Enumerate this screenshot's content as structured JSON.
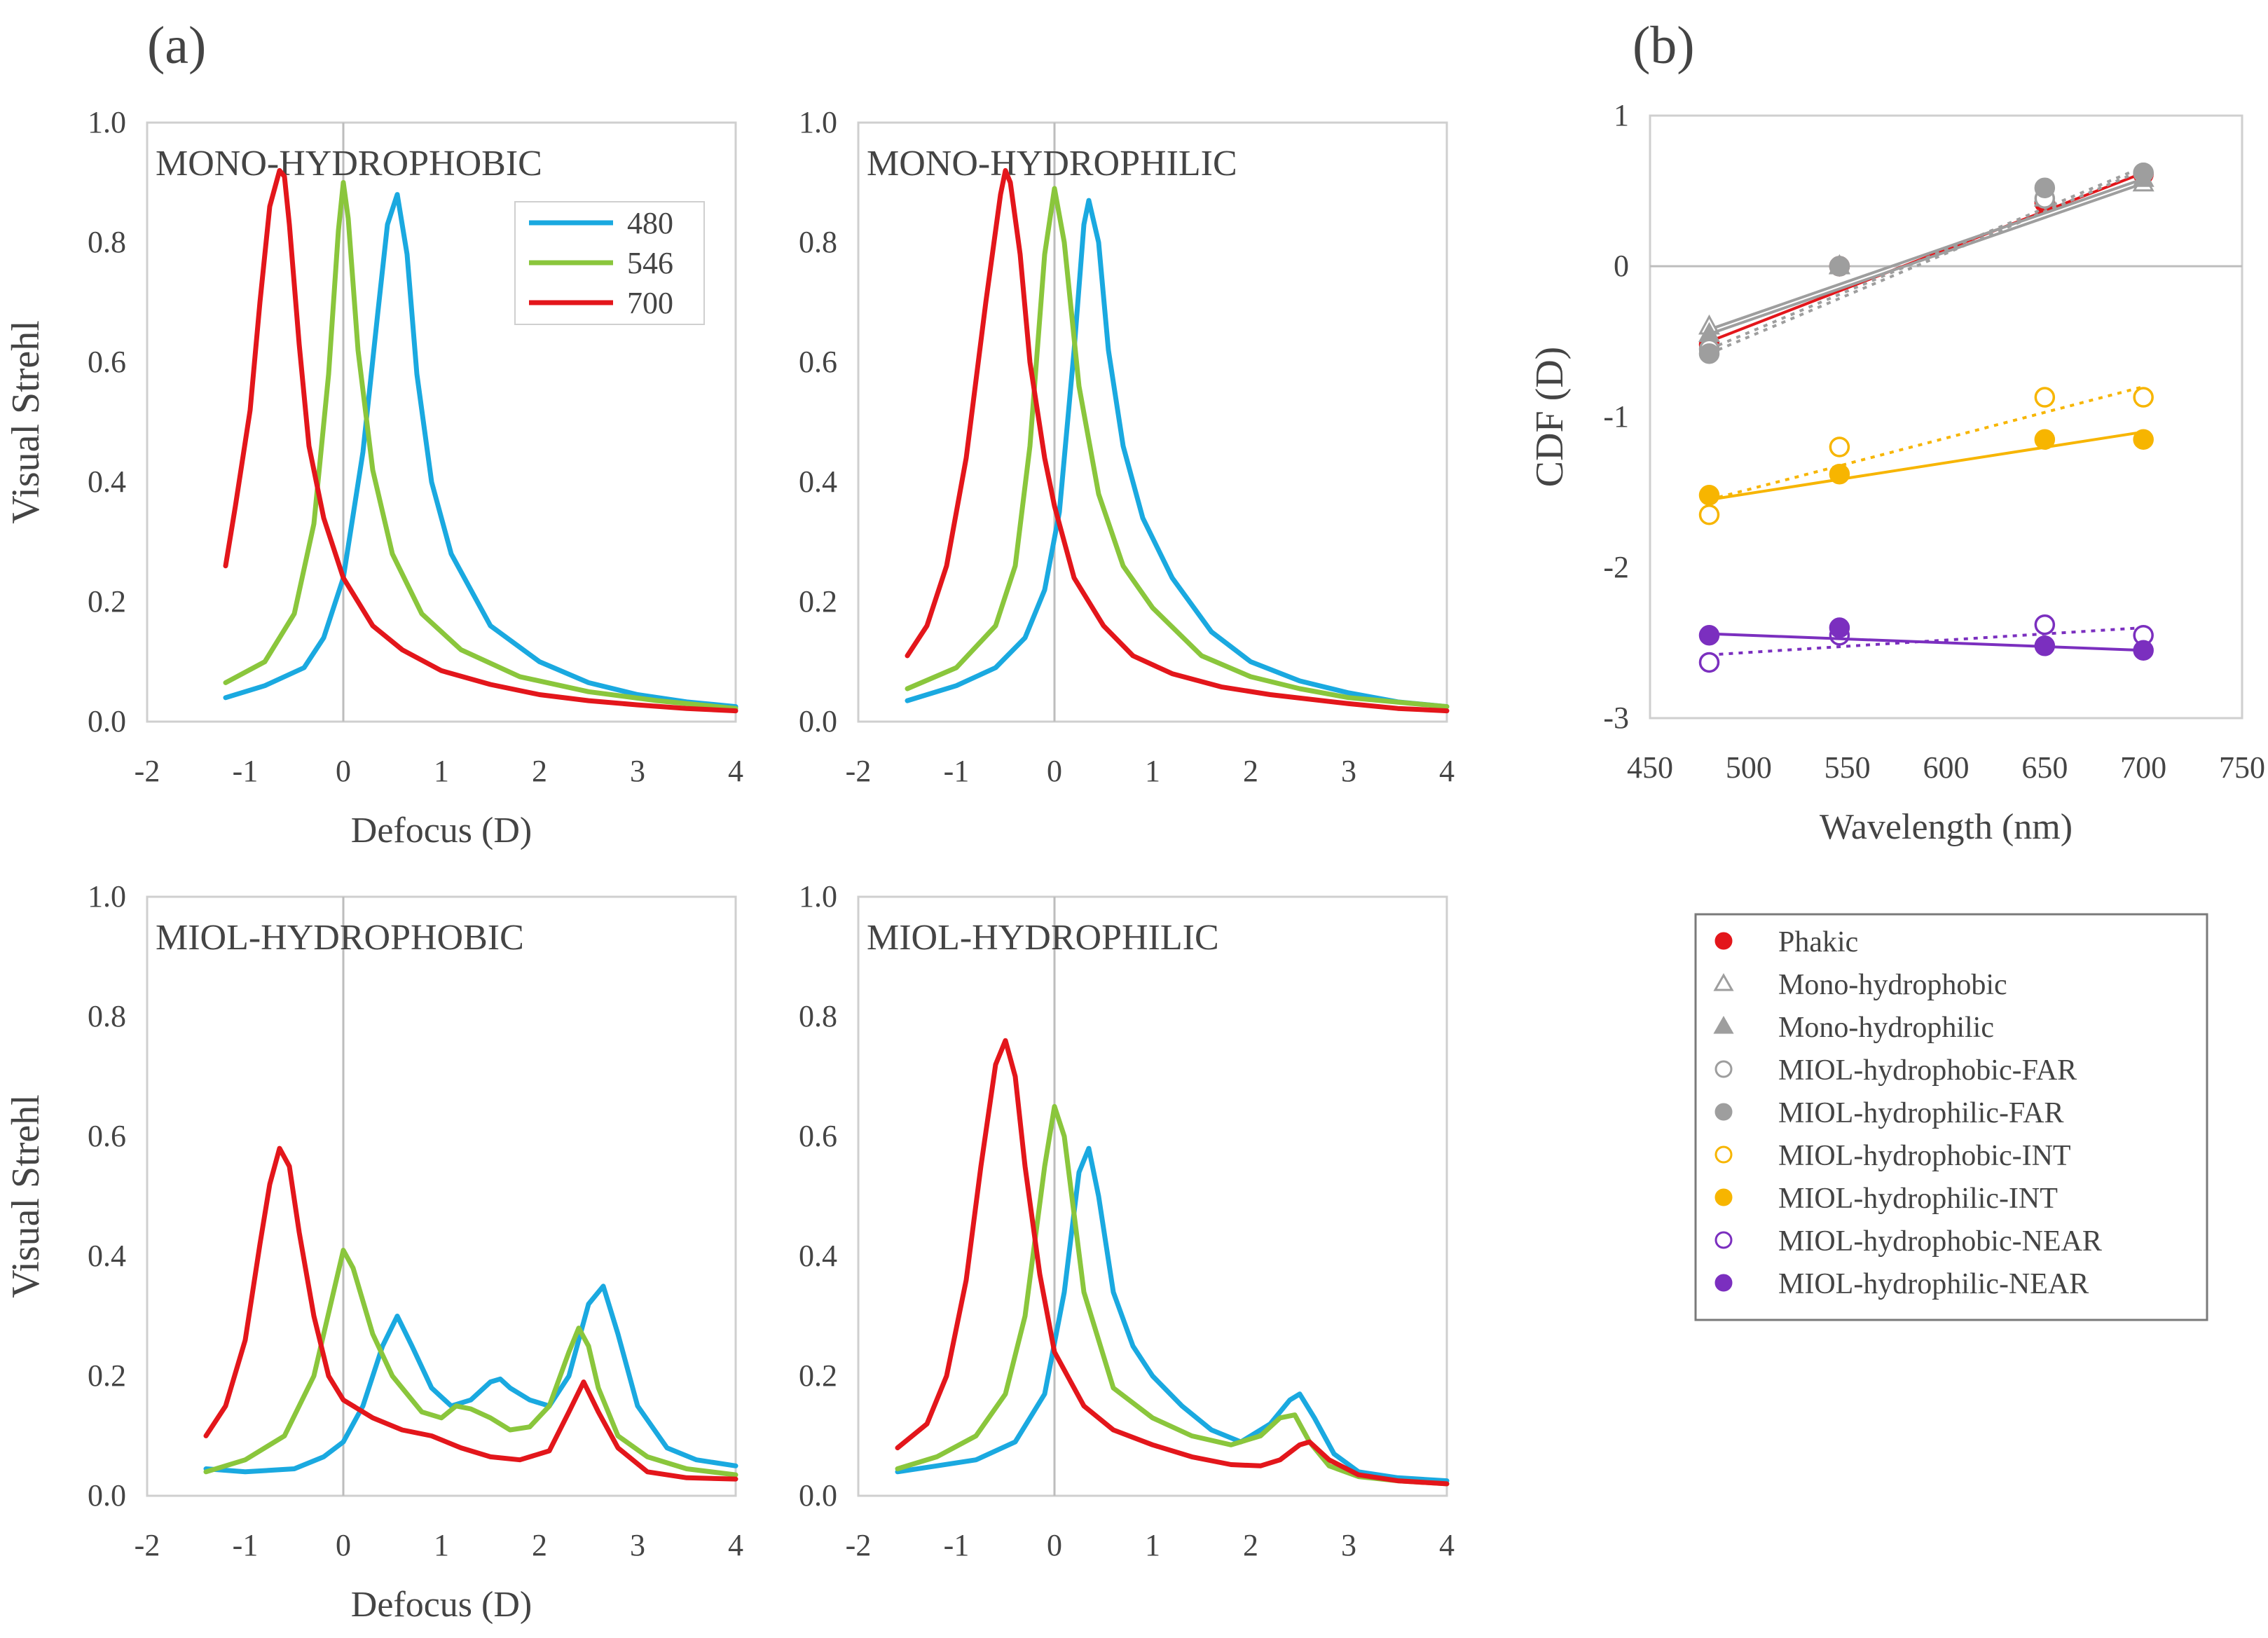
{
  "panel_labels": {
    "a": "(a)",
    "b": "(b)"
  },
  "colors": {
    "480": "#1aa9e0",
    "546": "#8ac63c",
    "700": "#e3161b",
    "gray": "#9e9e9e",
    "phakic": "#e3161b",
    "int": "#f7b500",
    "near": "#7b2fbf"
  },
  "chart_data": [
    {
      "id": "mono-hydrophobic",
      "type": "line",
      "title": "MONO-HYDROPHOBIC",
      "xlabel": "Defocus (D)",
      "ylabel": "Visual Strehl",
      "xlim": [
        -2,
        4
      ],
      "ylim": [
        0,
        1
      ],
      "xticks": [
        "-2",
        "-1",
        "0",
        "1",
        "2",
        "3",
        "4"
      ],
      "yticks": [
        "0.0",
        "0.2",
        "0.4",
        "0.6",
        "0.8",
        "1.0"
      ],
      "legend": [
        "480",
        "546",
        "700"
      ],
      "series": [
        {
          "name": "480",
          "x": [
            -1.2,
            -0.8,
            -0.4,
            -0.2,
            0.0,
            0.2,
            0.35,
            0.45,
            0.55,
            0.65,
            0.75,
            0.9,
            1.1,
            1.5,
            2.0,
            2.5,
            3.0,
            3.5,
            4.0
          ],
          "y": [
            0.04,
            0.06,
            0.09,
            0.14,
            0.24,
            0.45,
            0.68,
            0.83,
            0.88,
            0.78,
            0.58,
            0.4,
            0.28,
            0.16,
            0.1,
            0.065,
            0.045,
            0.033,
            0.025
          ]
        },
        {
          "name": "546",
          "x": [
            -1.2,
            -0.8,
            -0.5,
            -0.3,
            -0.15,
            -0.05,
            0.0,
            0.05,
            0.15,
            0.3,
            0.5,
            0.8,
            1.2,
            1.8,
            2.5,
            3.2,
            4.0
          ],
          "y": [
            0.065,
            0.1,
            0.18,
            0.33,
            0.58,
            0.82,
            0.9,
            0.84,
            0.62,
            0.42,
            0.28,
            0.18,
            0.12,
            0.075,
            0.05,
            0.035,
            0.022
          ]
        },
        {
          "name": "700",
          "x": [
            -1.2,
            -1.1,
            -0.95,
            -0.85,
            -0.75,
            -0.65,
            -0.6,
            -0.55,
            -0.45,
            -0.35,
            -0.2,
            0.0,
            0.3,
            0.6,
            1.0,
            1.5,
            2.0,
            2.5,
            3.0,
            3.5,
            4.0
          ],
          "y": [
            0.26,
            0.36,
            0.52,
            0.7,
            0.86,
            0.92,
            0.91,
            0.83,
            0.63,
            0.46,
            0.34,
            0.24,
            0.16,
            0.12,
            0.085,
            0.062,
            0.045,
            0.035,
            0.028,
            0.022,
            0.018
          ]
        }
      ]
    },
    {
      "id": "mono-hydrophilic",
      "type": "line",
      "title": "MONO-HYDROPHILIC",
      "xlabel": "",
      "ylabel": "",
      "xlim": [
        -2,
        4
      ],
      "ylim": [
        0,
        1
      ],
      "xticks": [
        "-2",
        "-1",
        "0",
        "1",
        "2",
        "3",
        "4"
      ],
      "yticks": [
        "0.0",
        "0.2",
        "0.4",
        "0.6",
        "0.8",
        "1.0"
      ],
      "legend": [],
      "series": [
        {
          "name": "480",
          "x": [
            -1.5,
            -1.0,
            -0.6,
            -0.3,
            -0.1,
            0.05,
            0.2,
            0.3,
            0.35,
            0.45,
            0.55,
            0.7,
            0.9,
            1.2,
            1.6,
            2.0,
            2.5,
            3.0,
            3.5,
            4.0
          ],
          "y": [
            0.035,
            0.06,
            0.09,
            0.14,
            0.22,
            0.35,
            0.62,
            0.83,
            0.87,
            0.8,
            0.62,
            0.46,
            0.34,
            0.24,
            0.15,
            0.1,
            0.068,
            0.048,
            0.033,
            0.025
          ]
        },
        {
          "name": "546",
          "x": [
            -1.5,
            -1.0,
            -0.6,
            -0.4,
            -0.25,
            -0.1,
            0.0,
            0.1,
            0.25,
            0.45,
            0.7,
            1.0,
            1.5,
            2.0,
            2.5,
            3.0,
            4.0
          ],
          "y": [
            0.055,
            0.09,
            0.16,
            0.26,
            0.46,
            0.78,
            0.89,
            0.8,
            0.56,
            0.38,
            0.26,
            0.19,
            0.11,
            0.075,
            0.055,
            0.04,
            0.025
          ]
        },
        {
          "name": "700",
          "x": [
            -1.5,
            -1.3,
            -1.1,
            -0.9,
            -0.7,
            -0.55,
            -0.5,
            -0.45,
            -0.35,
            -0.25,
            -0.1,
            0.0,
            0.2,
            0.5,
            0.8,
            1.2,
            1.7,
            2.2,
            3.0,
            3.5,
            4.0
          ],
          "y": [
            0.11,
            0.16,
            0.26,
            0.44,
            0.7,
            0.88,
            0.92,
            0.9,
            0.78,
            0.6,
            0.44,
            0.36,
            0.24,
            0.16,
            0.11,
            0.08,
            0.058,
            0.045,
            0.03,
            0.022,
            0.018
          ]
        }
      ]
    },
    {
      "id": "miol-hydrophobic",
      "type": "line",
      "title": "MIOL-HYDROPHOBIC",
      "xlabel": "Defocus (D)",
      "ylabel": "Visual Strehl",
      "xlim": [
        -2,
        4
      ],
      "ylim": [
        0,
        1
      ],
      "xticks": [
        "-2",
        "-1",
        "0",
        "1",
        "2",
        "3",
        "4"
      ],
      "yticks": [
        "0.0",
        "0.2",
        "0.4",
        "0.6",
        "0.8",
        "1.0"
      ],
      "legend": [],
      "series": [
        {
          "name": "480",
          "x": [
            -1.4,
            -1.0,
            -0.5,
            -0.2,
            0.0,
            0.2,
            0.4,
            0.55,
            0.7,
            0.9,
            1.1,
            1.3,
            1.5,
            1.6,
            1.7,
            1.9,
            2.1,
            2.3,
            2.5,
            2.65,
            2.8,
            3.0,
            3.3,
            3.6,
            4.0
          ],
          "y": [
            0.045,
            0.04,
            0.045,
            0.065,
            0.09,
            0.15,
            0.25,
            0.3,
            0.25,
            0.18,
            0.15,
            0.16,
            0.19,
            0.195,
            0.18,
            0.16,
            0.15,
            0.2,
            0.32,
            0.35,
            0.27,
            0.15,
            0.08,
            0.06,
            0.05
          ]
        },
        {
          "name": "546",
          "x": [
            -1.4,
            -1.0,
            -0.6,
            -0.3,
            -0.1,
            0.0,
            0.1,
            0.3,
            0.5,
            0.8,
            1.0,
            1.15,
            1.3,
            1.5,
            1.7,
            1.9,
            2.1,
            2.3,
            2.4,
            2.5,
            2.6,
            2.8,
            3.1,
            3.5,
            4.0
          ],
          "y": [
            0.04,
            0.06,
            0.1,
            0.2,
            0.34,
            0.41,
            0.38,
            0.27,
            0.2,
            0.14,
            0.13,
            0.15,
            0.145,
            0.13,
            0.11,
            0.115,
            0.15,
            0.24,
            0.28,
            0.25,
            0.18,
            0.1,
            0.065,
            0.045,
            0.035
          ]
        },
        {
          "name": "700",
          "x": [
            -1.4,
            -1.2,
            -1.0,
            -0.85,
            -0.75,
            -0.65,
            -0.55,
            -0.45,
            -0.3,
            -0.15,
            0.0,
            0.3,
            0.6,
            0.9,
            1.2,
            1.5,
            1.8,
            2.1,
            2.3,
            2.45,
            2.6,
            2.8,
            3.1,
            3.5,
            4.0
          ],
          "y": [
            0.1,
            0.15,
            0.26,
            0.42,
            0.52,
            0.58,
            0.55,
            0.44,
            0.3,
            0.2,
            0.16,
            0.13,
            0.11,
            0.1,
            0.08,
            0.065,
            0.06,
            0.075,
            0.14,
            0.19,
            0.14,
            0.08,
            0.04,
            0.03,
            0.028
          ]
        }
      ]
    },
    {
      "id": "miol-hydrophilic",
      "type": "line",
      "title": "MIOL-HYDROPHILIC",
      "xlabel": "",
      "ylabel": "",
      "xlim": [
        -2,
        4
      ],
      "ylim": [
        0,
        1
      ],
      "xticks": [
        "-2",
        "-1",
        "0",
        "1",
        "2",
        "3",
        "4"
      ],
      "yticks": [
        "0.0",
        "0.2",
        "0.4",
        "0.6",
        "0.8",
        "1.0"
      ],
      "legend": [],
      "series": [
        {
          "name": "480",
          "x": [
            -1.6,
            -1.2,
            -0.8,
            -0.4,
            -0.1,
            0.1,
            0.25,
            0.35,
            0.45,
            0.6,
            0.8,
            1.0,
            1.3,
            1.6,
            1.9,
            2.2,
            2.4,
            2.5,
            2.65,
            2.85,
            3.1,
            3.5,
            4.0
          ],
          "y": [
            0.04,
            0.05,
            0.06,
            0.09,
            0.17,
            0.34,
            0.54,
            0.58,
            0.5,
            0.34,
            0.25,
            0.2,
            0.15,
            0.11,
            0.09,
            0.12,
            0.16,
            0.17,
            0.13,
            0.07,
            0.04,
            0.03,
            0.025
          ]
        },
        {
          "name": "546",
          "x": [
            -1.6,
            -1.2,
            -0.8,
            -0.5,
            -0.3,
            -0.1,
            0.0,
            0.1,
            0.3,
            0.6,
            1.0,
            1.4,
            1.8,
            2.1,
            2.3,
            2.45,
            2.6,
            2.8,
            3.1,
            3.5,
            4.0
          ],
          "y": [
            0.045,
            0.065,
            0.1,
            0.17,
            0.3,
            0.55,
            0.65,
            0.6,
            0.34,
            0.18,
            0.13,
            0.1,
            0.085,
            0.1,
            0.13,
            0.135,
            0.09,
            0.05,
            0.032,
            0.025,
            0.02
          ]
        },
        {
          "name": "700",
          "x": [
            -1.6,
            -1.3,
            -1.1,
            -0.9,
            -0.75,
            -0.6,
            -0.5,
            -0.4,
            -0.3,
            -0.15,
            0.0,
            0.3,
            0.6,
            1.0,
            1.4,
            1.8,
            2.1,
            2.3,
            2.5,
            2.6,
            2.8,
            3.1,
            3.5,
            4.0
          ],
          "y": [
            0.08,
            0.12,
            0.2,
            0.36,
            0.55,
            0.72,
            0.76,
            0.7,
            0.55,
            0.37,
            0.24,
            0.15,
            0.11,
            0.085,
            0.065,
            0.052,
            0.05,
            0.06,
            0.085,
            0.09,
            0.06,
            0.035,
            0.025,
            0.02
          ]
        }
      ]
    },
    {
      "id": "cdf",
      "type": "scatter",
      "title": "",
      "xlabel": "Wavelength (nm)",
      "ylabel": "CDF (D)",
      "xlim": [
        450,
        750
      ],
      "ylim": [
        -3,
        1
      ],
      "xticks": [
        "450",
        "500",
        "550",
        "600",
        "650",
        "700",
        "750"
      ],
      "yticks": [
        "-3",
        "-2",
        "-1",
        "0",
        "1"
      ],
      "x": [
        480,
        546,
        650,
        700
      ],
      "series": [
        {
          "name": "Phakic",
          "y": [
            -0.52,
            0.0,
            0.42,
            0.61
          ],
          "marker": "filled-circle",
          "fit": "solid",
          "fit_y": [
            -0.5,
            0.62
          ],
          "color": "#e3161b"
        },
        {
          "name": "Mono-hydrophobic",
          "y": [
            -0.4,
            0.0,
            0.45,
            0.55
          ],
          "marker": "open-triangle",
          "fit": "solid",
          "fit_y": [
            -0.42,
            0.58
          ],
          "color": "#9e9e9e"
        },
        {
          "name": "Mono-hydrophilic",
          "y": [
            -0.45,
            0.0,
            0.48,
            0.58
          ],
          "marker": "filled-triangle",
          "fit": "solid",
          "fit_y": [
            -0.45,
            0.55
          ],
          "color": "#9e9e9e"
        },
        {
          "name": "MIOL-hydrophobic-FAR",
          "y": [
            -0.55,
            0.0,
            0.45,
            0.62
          ],
          "marker": "open-circle",
          "fit": "dotted",
          "fit_y": [
            -0.55,
            0.66
          ],
          "color": "#9e9e9e"
        },
        {
          "name": "MIOL-hydrophilic-FAR",
          "y": [
            -0.58,
            0.0,
            0.52,
            0.62
          ],
          "marker": "filled-circle",
          "fit": "dotted",
          "fit_y": [
            -0.58,
            0.64
          ],
          "color": "#9e9e9e"
        },
        {
          "name": "MIOL-hydrophobic-INT",
          "y": [
            -1.65,
            -1.2,
            -0.87,
            -0.87
          ],
          "marker": "open-circle",
          "fit": "dotted",
          "fit_y": [
            -1.55,
            -0.8
          ],
          "color": "#f7b500"
        },
        {
          "name": "MIOL-hydrophilic-INT",
          "y": [
            -1.52,
            -1.38,
            -1.15,
            -1.15
          ],
          "marker": "filled-circle",
          "fit": "solid",
          "fit_y": [
            -1.55,
            -1.1
          ],
          "color": "#f7b500"
        },
        {
          "name": "MIOL-hydrophobic-NEAR",
          "y": [
            -2.63,
            -2.45,
            -2.38,
            -2.45
          ],
          "marker": "open-circle",
          "fit": "dotted",
          "fit_y": [
            -2.58,
            -2.4
          ],
          "color": "#7b2fbf"
        },
        {
          "name": "MIOL-hydrophilic-NEAR",
          "y": [
            -2.45,
            -2.4,
            -2.52,
            -2.55
          ],
          "marker": "filled-circle",
          "fit": "solid",
          "fit_y": [
            -2.44,
            -2.55
          ],
          "color": "#7b2fbf"
        }
      ]
    }
  ]
}
